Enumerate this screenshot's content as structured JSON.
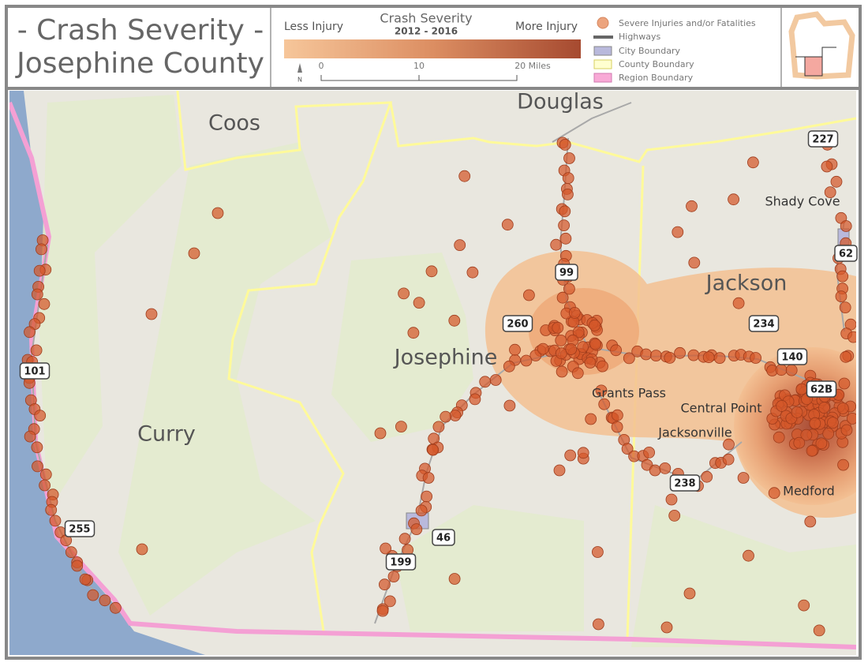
{
  "header": {
    "title_lines": [
      "- Crash Severity -",
      "Josephine County"
    ]
  },
  "legend": {
    "title": "Crash Severity",
    "period": "2012 - 2016",
    "low_label": "Less Injury",
    "high_label": "More Injury",
    "scale_labels": [
      "0",
      "10",
      "20 Miles"
    ],
    "north": "N",
    "items": [
      "Severe Injuries and/or Fatalities",
      "Highways",
      "City Boundary",
      "County Boundary",
      "Region Boundary"
    ]
  },
  "map": {
    "regions": [
      "Douglas",
      "Coos",
      "Curry",
      "Josephine",
      "Jackson"
    ],
    "cities": [
      "Shady Cove",
      "Grants Pass",
      "Central Point",
      "Jacksonville",
      "Medford"
    ],
    "highways": [
      "227",
      "62",
      "99",
      "260",
      "234",
      "140",
      "62B",
      "101",
      "238",
      "255",
      "46",
      "199"
    ]
  }
}
